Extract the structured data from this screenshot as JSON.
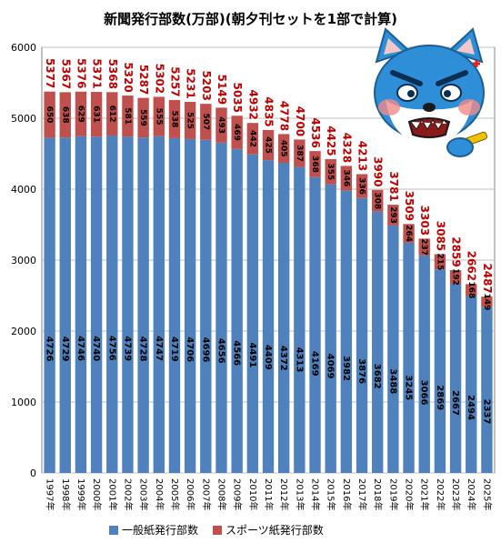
{
  "chart_data": {
    "type": "bar",
    "stacked": true,
    "title": "新聞発行部数(万部)(朝夕刊セットを1部で計算)",
    "xlabel": "",
    "ylabel": "",
    "ylim": [
      0,
      6000
    ],
    "yticks": [
      0,
      1000,
      2000,
      3000,
      4000,
      5000,
      6000
    ],
    "grid": true,
    "legend_position": "bottom",
    "categories": [
      "1997年",
      "1998年",
      "1999年",
      "2000年",
      "2001年",
      "2002年",
      "2003年",
      "2004年",
      "2005年",
      "2006年",
      "2007年",
      "2008年",
      "2009年",
      "2010年",
      "2011年",
      "2012年",
      "2013年",
      "2014年",
      "2015年",
      "2016年",
      "2017年",
      "2018年",
      "2019年",
      "2020年",
      "2021年",
      "2022年",
      "2023年",
      "2024年",
      "2025年"
    ],
    "series": [
      {
        "name": "一般紙発行部数",
        "color": "#4f81bd",
        "values": [
          4726,
          4729,
          4746,
          4740,
          4756,
          4739,
          4728,
          4747,
          4719,
          4706,
          4696,
          4656,
          4566,
          4491,
          4409,
          4372,
          4313,
          4169,
          4069,
          3982,
          3876,
          3682,
          3488,
          3245,
          3066,
          2869,
          2667,
          2494,
          2337
        ]
      },
      {
        "name": "スポーツ紙発行部数",
        "color": "#c0504d",
        "values": [
          650,
          638,
          629,
          631,
          612,
          581,
          559,
          555,
          538,
          525,
          507,
          493,
          469,
          442,
          425,
          405,
          387,
          368,
          355,
          346,
          336,
          308,
          293,
          264,
          237,
          215,
          192,
          168,
          149
        ]
      }
    ],
    "totals": [
      5377,
      5367,
      5376,
      5371,
      5368,
      5320,
      5287,
      5302,
      5257,
      5231,
      5203,
      5149,
      5035,
      4932,
      4835,
      4778,
      4700,
      4536,
      4425,
      4328,
      4213,
      3990,
      3781,
      3509,
      3303,
      3085,
      2859,
      2662,
      2487
    ]
  },
  "colors": {
    "total_label": "#c00000",
    "grid": "#bfbfbf",
    "axis": "#808080"
  },
  "mascot_icon": "angry-dog-mascot-icon"
}
